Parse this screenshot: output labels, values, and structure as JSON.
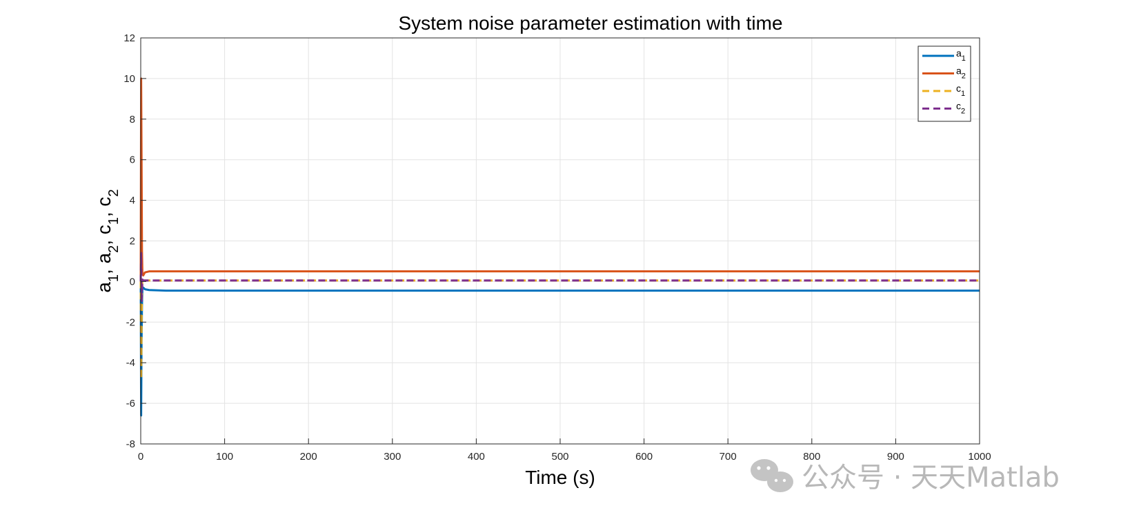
{
  "chart_data": {
    "type": "line",
    "title": "System noise parameter estimation with time",
    "xlabel": "Time (s)",
    "ylabel": {
      "parts": [
        {
          "base": "a",
          "sub": "1",
          "sep": ", "
        },
        {
          "base": "a",
          "sub": "2",
          "sep": ", "
        },
        {
          "base": "c",
          "sub": "1",
          "sep": ", "
        },
        {
          "base": "c",
          "sub": "2",
          "sep": ""
        }
      ]
    },
    "xlim": [
      0,
      1000
    ],
    "ylim": [
      -8,
      12
    ],
    "xticks": [
      0,
      100,
      200,
      300,
      400,
      500,
      600,
      700,
      800,
      900,
      1000
    ],
    "yticks": [
      -8,
      -6,
      -4,
      -2,
      0,
      2,
      4,
      6,
      8,
      10,
      12
    ],
    "grid": true,
    "legend_position": "top-right",
    "series": [
      {
        "name": "a1",
        "label_base": "a",
        "label_sub": "1",
        "color": "#0072BD",
        "dash": "solid",
        "x": [
          0,
          0.5,
          1,
          1.5,
          2,
          3,
          5,
          10,
          30,
          60,
          100,
          1000
        ],
        "y": [
          0,
          -6.6,
          -3.0,
          -1.2,
          -0.4,
          -0.3,
          -0.38,
          -0.42,
          -0.45,
          -0.45,
          -0.45,
          -0.45
        ]
      },
      {
        "name": "a2",
        "label_base": "a",
        "label_sub": "2",
        "color": "#D95319",
        "dash": "solid",
        "x": [
          0,
          0.5,
          1,
          1.5,
          2,
          3,
          5,
          10,
          30,
          60,
          100,
          1000
        ],
        "y": [
          0,
          10.0,
          6.0,
          1.5,
          0.4,
          0.3,
          0.45,
          0.5,
          0.5,
          0.5,
          0.5,
          0.5
        ]
      },
      {
        "name": "c1",
        "label_base": "c",
        "label_sub": "1",
        "color": "#EDB120",
        "dash": "dashed",
        "x": [
          0,
          0.5,
          1,
          1.5,
          2,
          3,
          5,
          10,
          100,
          1000
        ],
        "y": [
          0,
          -4.8,
          -2.0,
          -0.5,
          0.1,
          0.05,
          0.05,
          0.05,
          0.05,
          0.05
        ]
      },
      {
        "name": "c2",
        "label_base": "c",
        "label_sub": "2",
        "color": "#7E2F8E",
        "dash": "dashed",
        "x": [
          0,
          0.5,
          1,
          1.5,
          2,
          3,
          5,
          10,
          100,
          1000
        ],
        "y": [
          0,
          1.4,
          -1.0,
          -0.5,
          0.1,
          0.05,
          0.05,
          0.05,
          0.05,
          0.05
        ]
      }
    ]
  },
  "watermark": {
    "icon": "wechat-icon",
    "text": "公众号 · 天天Matlab"
  }
}
